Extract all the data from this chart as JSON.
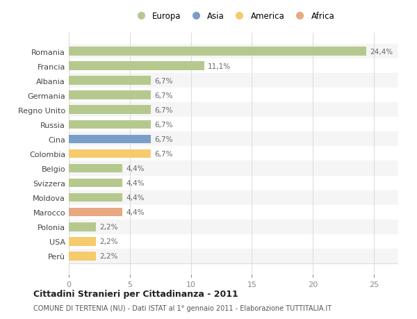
{
  "countries": [
    "Romania",
    "Francia",
    "Albania",
    "Germania",
    "Regno Unito",
    "Russia",
    "Cina",
    "Colombia",
    "Belgio",
    "Svizzera",
    "Moldova",
    "Marocco",
    "Polonia",
    "USA",
    "Perù"
  ],
  "values": [
    24.4,
    11.1,
    6.7,
    6.7,
    6.7,
    6.7,
    6.7,
    6.7,
    4.4,
    4.4,
    4.4,
    4.4,
    2.2,
    2.2,
    2.2
  ],
  "labels": [
    "24,4%",
    "11,1%",
    "6,7%",
    "6,7%",
    "6,7%",
    "6,7%",
    "6,7%",
    "6,7%",
    "4,4%",
    "4,4%",
    "4,4%",
    "4,4%",
    "2,2%",
    "2,2%",
    "2,2%"
  ],
  "colors": [
    "#b5c98e",
    "#b5c98e",
    "#b5c98e",
    "#b5c98e",
    "#b5c98e",
    "#b5c98e",
    "#7b9ec9",
    "#f5cb6e",
    "#b5c98e",
    "#b5c98e",
    "#b5c98e",
    "#e8a882",
    "#b5c98e",
    "#f5cb6e",
    "#f5cb6e"
  ],
  "legend_labels": [
    "Europa",
    "Asia",
    "America",
    "Africa"
  ],
  "legend_colors": [
    "#b5c98e",
    "#7b9ec9",
    "#f5cb6e",
    "#e8a882"
  ],
  "title": "Cittadini Stranieri per Cittadinanza - 2011",
  "subtitle": "COMUNE DI TERTENIA (NU) - Dati ISTAT al 1° gennaio 2011 - Elaborazione TUTTITALIA.IT",
  "xlim": [
    0,
    27
  ],
  "xticks": [
    0,
    5,
    10,
    15,
    20,
    25
  ],
  "background_color": "#ffffff",
  "plot_bg_color": "#ffffff",
  "separator_color": "#dddddd",
  "grid_color": "#dddddd",
  "label_color": "#666666",
  "tick_color": "#888888"
}
